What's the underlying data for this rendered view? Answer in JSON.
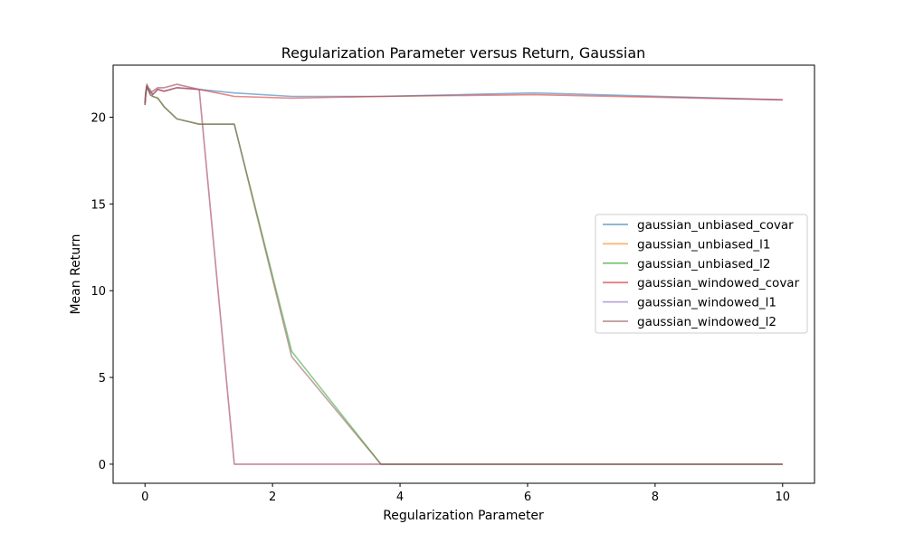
{
  "chart_data": {
    "type": "line",
    "title": "Regularization Parameter versus Return, Gaussian",
    "xlabel": "Regularization Parameter",
    "ylabel": "Mean Return",
    "xlim": [
      -0.5,
      10.5
    ],
    "ylim": [
      -1.1,
      23.0
    ],
    "xticks": [
      0,
      2,
      4,
      6,
      8,
      10
    ],
    "yticks": [
      0,
      5,
      10,
      15,
      20
    ],
    "grid": false,
    "legend_position": "center-right",
    "series": [
      {
        "name": "gaussian_unbiased_covar",
        "color": "#1f77b4",
        "x": [
          0,
          0.01,
          0.03,
          0.05,
          0.08,
          0.12,
          0.2,
          0.3,
          0.5,
          0.85,
          1.4,
          2.3,
          3.7,
          6.1,
          10
        ],
        "y": [
          20.7,
          21.4,
          21.8,
          21.7,
          21.6,
          21.3,
          21.6,
          21.5,
          21.7,
          21.6,
          21.4,
          21.2,
          21.2,
          21.4,
          21.0
        ]
      },
      {
        "name": "gaussian_unbiased_l1",
        "color": "#ff7f0e",
        "x": [
          0,
          0.01,
          0.03,
          0.05,
          0.08,
          0.12,
          0.2,
          0.3,
          0.5,
          0.85,
          1.4,
          2.3,
          3.7,
          6.1,
          10
        ],
        "y": [
          20.8,
          21.3,
          21.9,
          21.7,
          21.4,
          21.5,
          21.7,
          21.7,
          21.9,
          21.6,
          0.0,
          0.0,
          0.0,
          0.0,
          0.0
        ]
      },
      {
        "name": "gaussian_unbiased_l2",
        "color": "#2ca02c",
        "x": [
          0,
          0.01,
          0.03,
          0.05,
          0.08,
          0.12,
          0.2,
          0.3,
          0.5,
          0.85,
          1.4,
          2.3,
          3.7,
          6.1,
          10
        ],
        "y": [
          20.8,
          21.2,
          21.8,
          21.6,
          21.3,
          21.2,
          21.1,
          20.6,
          19.9,
          19.6,
          19.6,
          6.5,
          0.0,
          0.0,
          0.0
        ]
      },
      {
        "name": "gaussian_windowed_covar",
        "color": "#d62728",
        "x": [
          0,
          0.01,
          0.03,
          0.05,
          0.08,
          0.12,
          0.2,
          0.3,
          0.5,
          0.85,
          1.4,
          2.3,
          3.7,
          6.1,
          10
        ],
        "y": [
          20.7,
          21.3,
          21.8,
          21.6,
          21.5,
          21.3,
          21.6,
          21.5,
          21.7,
          21.6,
          21.2,
          21.1,
          21.2,
          21.3,
          21.0
        ]
      },
      {
        "name": "gaussian_windowed_l1",
        "color": "#9467bd",
        "x": [
          0,
          0.01,
          0.03,
          0.05,
          0.08,
          0.12,
          0.2,
          0.3,
          0.5,
          0.85,
          1.4,
          2.3,
          3.7,
          6.1,
          10
        ],
        "y": [
          20.8,
          21.4,
          21.9,
          21.7,
          21.4,
          21.5,
          21.7,
          21.7,
          21.9,
          21.6,
          0.0,
          0.0,
          0.0,
          0.0,
          0.0
        ]
      },
      {
        "name": "gaussian_windowed_l2",
        "color": "#8c564b",
        "x": [
          0,
          0.01,
          0.03,
          0.05,
          0.08,
          0.12,
          0.2,
          0.3,
          0.5,
          0.85,
          1.4,
          2.3,
          3.7,
          6.1,
          10
        ],
        "y": [
          20.8,
          21.2,
          21.8,
          21.6,
          21.3,
          21.2,
          21.1,
          20.6,
          19.9,
          19.6,
          19.6,
          6.2,
          0.0,
          0.0,
          0.0
        ]
      }
    ]
  }
}
